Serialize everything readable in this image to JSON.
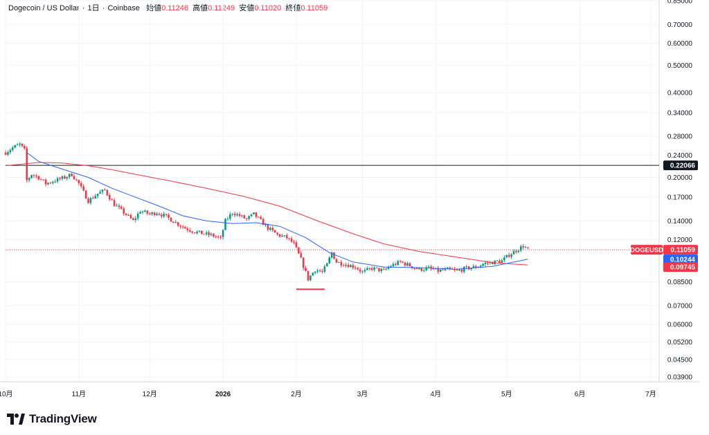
{
  "header": {
    "symbol": "Dogecoin / US Dollar",
    "interval": "1日",
    "exchange": "Coinbase",
    "open_label": "始値",
    "open_value": "0.11246",
    "high_label": "高値",
    "high_value": "0.11249",
    "low_label": "安値",
    "low_value": "0.11020",
    "close_label": "終値",
    "close_value": "0.11059"
  },
  "brand": {
    "name": "TradingView",
    "icon": "tradingview-logo-icon"
  },
  "colors": {
    "up": "#089981",
    "down": "#f23645",
    "ma_fast": "#2962ff",
    "ma_slow": "#f23645",
    "hline": "#131722"
  },
  "chart_data": {
    "type": "candlestick",
    "scale": "log",
    "ylim": [
      0.0375,
      0.855
    ],
    "x_tick_labels": [
      "10月",
      "11月",
      "12月",
      "2026",
      "2月",
      "3月",
      "4月",
      "5月",
      "6月",
      "7月"
    ],
    "x_tick_dates": [
      "2025-10-01",
      "2025-11-01",
      "2025-12-01",
      "2026-01-01",
      "2026-02-01",
      "2026-03-01",
      "2026-04-01",
      "2026-05-01",
      "2026-06-01",
      "2026-07-01"
    ],
    "y_ticks": [
      "0.85000",
      "0.70000",
      "0.60000",
      "0.50000",
      "0.40000",
      "0.34000",
      "0.28000",
      "0.24000",
      "0.20000",
      "0.17000",
      "0.14000",
      "0.12000",
      "0.08500",
      "0.07000",
      "0.06000",
      "0.05200",
      "0.04500",
      "0.03900"
    ],
    "horizontal_line": {
      "value": 0.22066,
      "label": "0.22066"
    },
    "last_price": {
      "value": 0.11059,
      "label": "0.11059",
      "symbol": "DOGEUSD"
    },
    "ma_fast_last": {
      "value": 0.10244,
      "label": "0.10244"
    },
    "ma_slow_last": {
      "value": 0.09745,
      "label": "0.09745"
    },
    "low_marker": {
      "value": 0.08,
      "from": "2026-02-01",
      "to": "2026-02-13"
    },
    "price_path": [
      [
        "2025-10-01",
        0.245
      ],
      [
        "2025-10-04",
        0.255
      ],
      [
        "2025-10-07",
        0.262
      ],
      [
        "2025-10-09",
        0.25
      ],
      [
        "2025-10-10",
        0.195
      ],
      [
        "2025-10-12",
        0.205
      ],
      [
        "2025-10-15",
        0.2
      ],
      [
        "2025-10-18",
        0.19
      ],
      [
        "2025-10-22",
        0.195
      ],
      [
        "2025-10-26",
        0.2
      ],
      [
        "2025-10-29",
        0.205
      ],
      [
        "2025-11-01",
        0.19
      ],
      [
        "2025-11-05",
        0.165
      ],
      [
        "2025-11-09",
        0.175
      ],
      [
        "2025-11-12",
        0.18
      ],
      [
        "2025-11-16",
        0.16
      ],
      [
        "2025-11-20",
        0.15
      ],
      [
        "2025-11-24",
        0.14
      ],
      [
        "2025-11-27",
        0.152
      ],
      [
        "2025-12-01",
        0.148
      ],
      [
        "2025-12-04",
        0.15
      ],
      [
        "2025-12-08",
        0.145
      ],
      [
        "2025-12-12",
        0.138
      ],
      [
        "2025-12-16",
        0.132
      ],
      [
        "2025-12-20",
        0.128
      ],
      [
        "2025-12-24",
        0.126
      ],
      [
        "2025-12-28",
        0.124
      ],
      [
        "2025-12-31",
        0.121
      ],
      [
        "2026-01-02",
        0.14
      ],
      [
        "2026-01-05",
        0.15
      ],
      [
        "2026-01-08",
        0.146
      ],
      [
        "2026-01-11",
        0.142
      ],
      [
        "2026-01-14",
        0.148
      ],
      [
        "2026-01-17",
        0.14
      ],
      [
        "2026-01-20",
        0.132
      ],
      [
        "2026-01-24",
        0.125
      ],
      [
        "2026-01-28",
        0.122
      ],
      [
        "2026-01-31",
        0.116
      ],
      [
        "2026-02-03",
        0.102
      ],
      [
        "2026-02-06",
        0.087
      ],
      [
        "2026-02-09",
        0.094
      ],
      [
        "2026-02-12",
        0.092
      ],
      [
        "2026-02-14",
        0.098
      ],
      [
        "2026-02-16",
        0.108
      ],
      [
        "2026-02-18",
        0.1
      ],
      [
        "2026-02-22",
        0.098
      ],
      [
        "2026-02-26",
        0.096
      ],
      [
        "2026-03-01",
        0.092
      ],
      [
        "2026-03-05",
        0.095
      ],
      [
        "2026-03-10",
        0.093
      ],
      [
        "2026-03-13",
        0.097
      ],
      [
        "2026-03-17",
        0.1
      ],
      [
        "2026-03-21",
        0.097
      ],
      [
        "2026-03-25",
        0.094
      ],
      [
        "2026-03-29",
        0.095
      ],
      [
        "2026-04-02",
        0.093
      ],
      [
        "2026-04-06",
        0.094
      ],
      [
        "2026-04-10",
        0.093
      ],
      [
        "2026-04-14",
        0.095
      ],
      [
        "2026-04-18",
        0.096
      ],
      [
        "2026-04-22",
        0.099
      ],
      [
        "2026-04-26",
        0.1
      ],
      [
        "2026-04-29",
        0.101
      ],
      [
        "2026-05-02",
        0.106
      ],
      [
        "2026-05-05",
        0.11
      ],
      [
        "2026-05-08",
        0.114
      ],
      [
        "2026-05-10",
        0.1106
      ]
    ],
    "ma_fast": [
      [
        "2025-10-10",
        0.245
      ],
      [
        "2025-10-15",
        0.228
      ],
      [
        "2025-10-25",
        0.214
      ],
      [
        "2025-11-05",
        0.2
      ],
      [
        "2025-11-15",
        0.183
      ],
      [
        "2025-11-25",
        0.17
      ],
      [
        "2025-12-05",
        0.158
      ],
      [
        "2025-12-15",
        0.146
      ],
      [
        "2025-12-25",
        0.14
      ],
      [
        "2026-01-05",
        0.137
      ],
      [
        "2026-01-15",
        0.138
      ],
      [
        "2026-01-25",
        0.134
      ],
      [
        "2026-02-05",
        0.122
      ],
      [
        "2026-02-15",
        0.108
      ],
      [
        "2026-02-25",
        0.1
      ],
      [
        "2026-03-10",
        0.096
      ],
      [
        "2026-03-25",
        0.0955
      ],
      [
        "2026-04-10",
        0.0942
      ],
      [
        "2026-04-25",
        0.0965
      ],
      [
        "2026-05-10",
        0.1024
      ]
    ],
    "ma_slow": [
      [
        "2025-10-01",
        0.22
      ],
      [
        "2025-10-15",
        0.226
      ],
      [
        "2025-10-25",
        0.225
      ],
      [
        "2025-11-05",
        0.22
      ],
      [
        "2025-11-15",
        0.213
      ],
      [
        "2025-11-25",
        0.205
      ],
      [
        "2025-12-10",
        0.194
      ],
      [
        "2025-12-25",
        0.183
      ],
      [
        "2026-01-10",
        0.171
      ],
      [
        "2026-01-25",
        0.158
      ],
      [
        "2026-02-10",
        0.14
      ],
      [
        "2026-02-25",
        0.126
      ],
      [
        "2026-03-10",
        0.116
      ],
      [
        "2026-03-25",
        0.109
      ],
      [
        "2026-04-10",
        0.104
      ],
      [
        "2026-04-25",
        0.0995
      ],
      [
        "2026-05-10",
        0.0975
      ]
    ]
  }
}
